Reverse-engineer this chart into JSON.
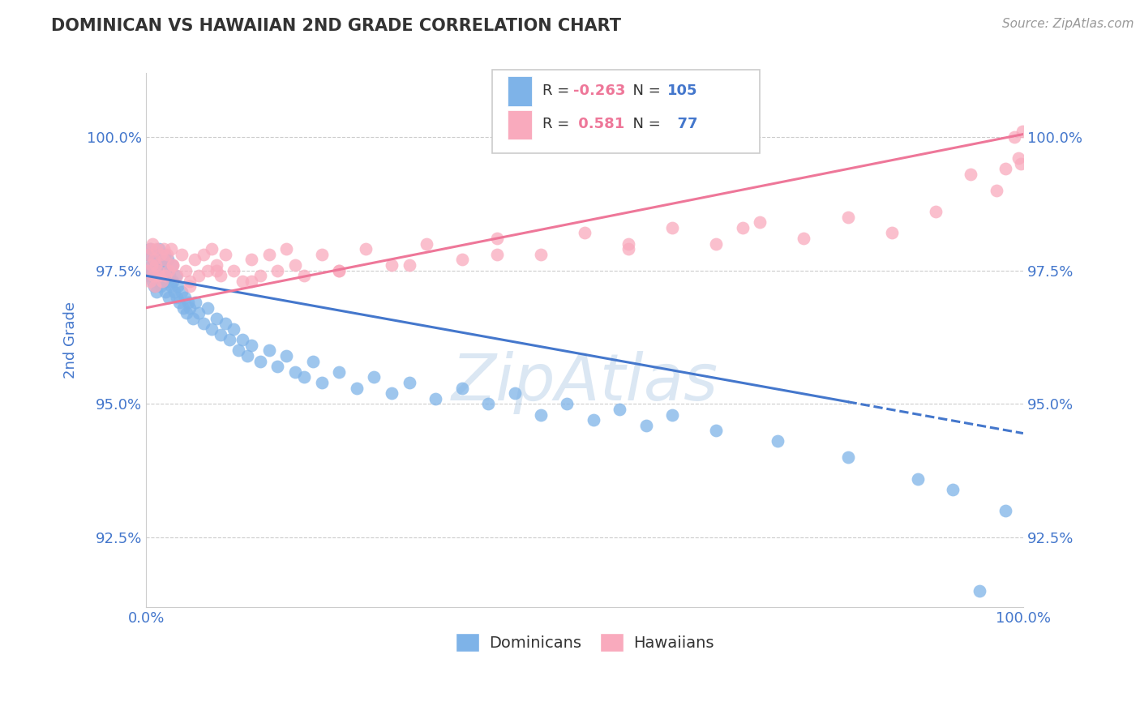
{
  "title": "DOMINICAN VS HAWAIIAN 2ND GRADE CORRELATION CHART",
  "source": "Source: ZipAtlas.com",
  "ylabel": "2nd Grade",
  "legend_blue_label": "Dominicans",
  "legend_pink_label": "Hawaiians",
  "legend_blue_R": "-0.263",
  "legend_blue_N": "105",
  "legend_pink_R": "0.581",
  "legend_pink_N": "77",
  "yticks": [
    92.5,
    95.0,
    97.5,
    100.0
  ],
  "ytick_labels": [
    "92.5%",
    "95.0%",
    "97.5%",
    "100.0%"
  ],
  "xlim": [
    0.0,
    100.0
  ],
  "ylim": [
    91.2,
    101.2
  ],
  "blue_color": "#7EB3E8",
  "pink_color": "#F9AABD",
  "blue_line_color": "#4477CC",
  "pink_line_color": "#EE7799",
  "axis_color": "#4477CC",
  "blue_dots_x": [
    0.2,
    0.3,
    0.4,
    0.5,
    0.6,
    0.7,
    0.8,
    0.9,
    1.0,
    1.1,
    1.2,
    1.3,
    1.4,
    1.5,
    1.6,
    1.7,
    1.8,
    1.9,
    2.0,
    2.1,
    2.2,
    2.3,
    2.4,
    2.5,
    2.6,
    2.7,
    2.8,
    2.9,
    3.0,
    3.2,
    3.4,
    3.5,
    3.6,
    3.8,
    4.0,
    4.2,
    4.4,
    4.6,
    4.8,
    5.0,
    5.3,
    5.6,
    6.0,
    6.5,
    7.0,
    7.5,
    8.0,
    8.5,
    9.0,
    9.5,
    10.0,
    10.5,
    11.0,
    11.5,
    12.0,
    13.0,
    14.0,
    15.0,
    16.0,
    17.0,
    18.0,
    19.0,
    20.0,
    22.0,
    24.0,
    26.0,
    28.0,
    30.0,
    33.0,
    36.0,
    39.0,
    42.0,
    45.0,
    48.0,
    51.0,
    54.0,
    57.0,
    60.0,
    65.0,
    72.0,
    80.0,
    88.0,
    92.0,
    95.0,
    98.0
  ],
  "blue_dots_y": [
    97.8,
    97.4,
    97.9,
    97.5,
    97.6,
    97.3,
    97.7,
    97.2,
    97.5,
    97.8,
    97.1,
    97.6,
    97.4,
    97.9,
    97.2,
    97.7,
    97.3,
    97.6,
    97.4,
    97.8,
    97.1,
    97.5,
    97.3,
    97.7,
    97.0,
    97.4,
    97.2,
    97.6,
    97.3,
    97.1,
    97.4,
    97.0,
    97.2,
    96.9,
    97.1,
    96.8,
    97.0,
    96.7,
    96.9,
    96.8,
    96.6,
    96.9,
    96.7,
    96.5,
    96.8,
    96.4,
    96.6,
    96.3,
    96.5,
    96.2,
    96.4,
    96.0,
    96.2,
    95.9,
    96.1,
    95.8,
    96.0,
    95.7,
    95.9,
    95.6,
    95.5,
    95.8,
    95.4,
    95.6,
    95.3,
    95.5,
    95.2,
    95.4,
    95.1,
    95.3,
    95.0,
    95.2,
    94.8,
    95.0,
    94.7,
    94.9,
    94.6,
    94.8,
    94.5,
    94.3,
    94.0,
    93.6,
    93.4,
    91.5,
    93.0
  ],
  "pink_dots_x": [
    0.2,
    0.3,
    0.4,
    0.5,
    0.6,
    0.7,
    0.8,
    0.9,
    1.0,
    1.1,
    1.2,
    1.4,
    1.6,
    1.8,
    2.0,
    2.2,
    2.4,
    2.6,
    2.8,
    3.0,
    3.5,
    4.0,
    4.5,
    5.0,
    5.5,
    6.0,
    6.5,
    7.0,
    7.5,
    8.0,
    8.5,
    9.0,
    10.0,
    11.0,
    12.0,
    13.0,
    14.0,
    15.0,
    16.0,
    17.0,
    18.0,
    20.0,
    22.0,
    25.0,
    28.0,
    32.0,
    36.0,
    40.0,
    45.0,
    50.0,
    55.0,
    60.0,
    65.0,
    70.0,
    75.0,
    80.0,
    85.0,
    90.0,
    94.0,
    97.0,
    98.0,
    99.0,
    99.5,
    99.7,
    99.9,
    55.0,
    68.0,
    40.0,
    30.0,
    22.0,
    12.0,
    8.0,
    5.0,
    3.0,
    2.0,
    1.5
  ],
  "pink_dots_y": [
    97.5,
    97.8,
    97.3,
    97.9,
    97.6,
    98.0,
    97.4,
    97.7,
    97.2,
    97.6,
    97.9,
    97.5,
    97.8,
    97.3,
    97.7,
    97.4,
    97.8,
    97.5,
    97.9,
    97.6,
    97.4,
    97.8,
    97.5,
    97.3,
    97.7,
    97.4,
    97.8,
    97.5,
    97.9,
    97.6,
    97.4,
    97.8,
    97.5,
    97.3,
    97.7,
    97.4,
    97.8,
    97.5,
    97.9,
    97.6,
    97.4,
    97.8,
    97.5,
    97.9,
    97.6,
    98.0,
    97.7,
    98.1,
    97.8,
    98.2,
    97.9,
    98.3,
    98.0,
    98.4,
    98.1,
    98.5,
    98.2,
    98.6,
    99.3,
    99.0,
    99.4,
    100.0,
    99.6,
    99.5,
    100.1,
    98.0,
    98.3,
    97.8,
    97.6,
    97.5,
    97.3,
    97.5,
    97.2,
    97.6,
    97.9,
    97.4
  ],
  "blue_line_x_start": 0.0,
  "blue_line_x_end": 100.0,
  "blue_line_y_start": 97.4,
  "blue_line_y_end": 94.45,
  "blue_line_solid_end": 80.0,
  "pink_line_x_start": 0.0,
  "pink_line_x_end": 100.0,
  "pink_line_y_start": 96.8,
  "pink_line_y_end": 100.05
}
